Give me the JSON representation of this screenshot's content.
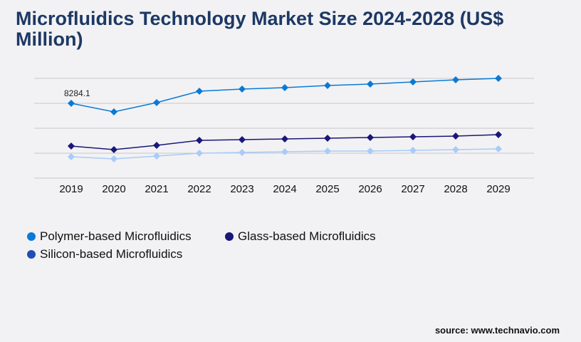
{
  "title": "Microfluidics Technology Market Size 2024-2028 (US$ Million)",
  "source": "source: www.technavio.com",
  "chart_data": {
    "type": "line",
    "title": "Microfluidics Technology Market Size 2024-2028 (US$ Million)",
    "categories": [
      "2019",
      "2020",
      "2021",
      "2022",
      "2023",
      "2024",
      "2025",
      "2026",
      "2027",
      "2028",
      "2029"
    ],
    "ylim": [
      0,
      11046
    ],
    "grid": true,
    "legend_position": "bottom-left",
    "annotation": "8284.1",
    "series": [
      {
        "name": "Polymer-based Microfluidics",
        "color": "#0a7ad6",
        "legend_color": "#0a7ad6",
        "values": [
          8284.1,
          7337,
          8363,
          9626,
          9862,
          10020,
          10257,
          10415,
          10652,
          10888,
          11046
        ]
      },
      {
        "name": "Glass-based Microfluidics",
        "color": "#1a1778",
        "legend_color": "#1a1778",
        "values": [
          3550,
          3156,
          3629,
          4182,
          4260,
          4339,
          4418,
          4497,
          4576,
          4655,
          4813
        ]
      },
      {
        "name": "Silicon-based Microfluidics",
        "color": "#a9cbf8",
        "legend_color": "#1f4fb5",
        "values": [
          2367,
          2130,
          2446,
          2761,
          2840,
          2919,
          2998,
          2998,
          3077,
          3156,
          3235
        ]
      }
    ]
  }
}
